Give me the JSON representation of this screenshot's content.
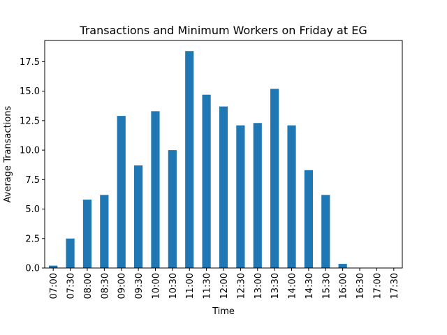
{
  "chart_data": {
    "type": "bar",
    "title": "Transactions and Minimum Workers on Friday at EG",
    "xlabel": "Time",
    "ylabel": "Average Transactions",
    "categories": [
      "07:00",
      "07:30",
      "08:00",
      "08:30",
      "09:00",
      "09:30",
      "10:00",
      "10:30",
      "11:00",
      "11:30",
      "12:00",
      "12:30",
      "13:00",
      "13:30",
      "14:00",
      "14:30",
      "15:30",
      "16:00",
      "16:30",
      "17:00",
      "17:30"
    ],
    "values": [
      0.2,
      2.5,
      5.8,
      6.2,
      12.9,
      8.7,
      13.3,
      10.0,
      18.4,
      14.7,
      13.7,
      12.1,
      12.3,
      15.2,
      12.1,
      8.3,
      6.2,
      0.35,
      0,
      0,
      0
    ],
    "ylim": [
      0,
      19.3
    ],
    "yticks": [
      0.0,
      2.5,
      5.0,
      7.5,
      10.0,
      12.5,
      15.0,
      17.5
    ],
    "ytick_labels": [
      "0.0",
      "2.5",
      "5.0",
      "7.5",
      "10.0",
      "12.5",
      "15.0",
      "17.5"
    ],
    "bar_color": "#1f77b4",
    "grid": false,
    "legend": "none"
  }
}
